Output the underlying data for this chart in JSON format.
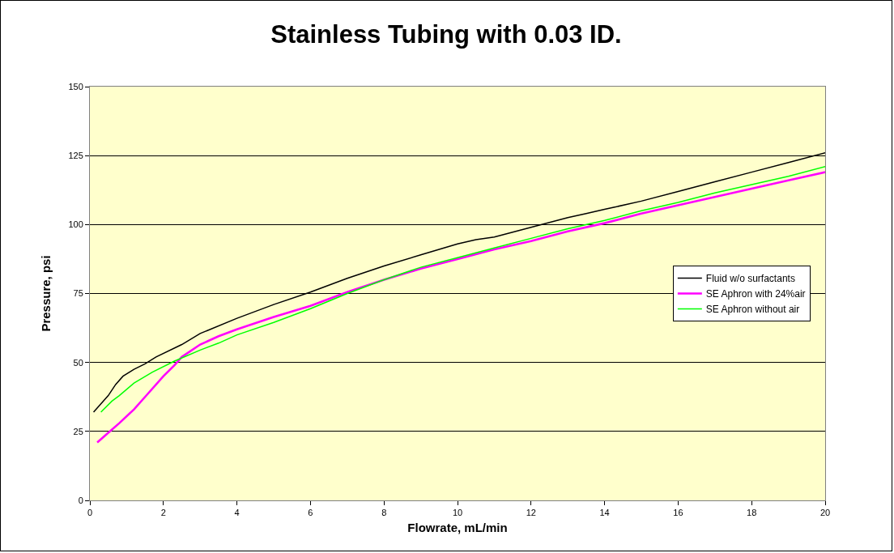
{
  "chart_data": {
    "type": "line",
    "title": "Stainless Tubing with 0.03 ID.",
    "xlabel": "Flowrate, mL/min",
    "ylabel": "Pressure, psi",
    "xlim": [
      0,
      20
    ],
    "xticks": [
      0,
      2,
      4,
      6,
      8,
      10,
      12,
      14,
      16,
      18,
      20
    ],
    "ylim": [
      0,
      150
    ],
    "yticks": [
      0,
      25,
      50,
      75,
      100,
      125,
      150
    ],
    "grid": "y",
    "legend": "right",
    "marker": "none",
    "line_style": "solid",
    "series": [
      {
        "name": "Fluid w/o surfactants",
        "color": "#000000",
        "x": [
          0.1,
          0.3,
          0.5,
          0.7,
          0.9,
          1.2,
          1.5,
          1.8,
          2.5,
          3,
          4,
          5,
          6,
          7,
          8,
          9,
          10,
          10.5,
          11,
          12,
          13,
          13.5,
          14,
          15,
          16,
          17,
          18,
          19,
          20
        ],
        "values": [
          32,
          35,
          38,
          42,
          45,
          47.5,
          49.5,
          52,
          56.5,
          60.5,
          66,
          71,
          75.5,
          80.5,
          85,
          89,
          93,
          94.5,
          95.5,
          99,
          102.5,
          104,
          105.5,
          108.5,
          112,
          115.5,
          119,
          122.5,
          126
        ]
      },
      {
        "name": "SE Aphron with 24%air",
        "color": "#ff00ff",
        "x": [
          0.2,
          0.5,
          0.8,
          1.2,
          1.5,
          2,
          2.3,
          2.5,
          3,
          3.5,
          4,
          5,
          6,
          7,
          8,
          9,
          10,
          11,
          12,
          13,
          14,
          15,
          16,
          17,
          18,
          19,
          20
        ],
        "values": [
          21,
          24.5,
          28,
          33,
          37.5,
          45,
          49,
          52,
          56.5,
          59.5,
          62,
          66.5,
          70.5,
          75.5,
          80,
          84,
          87.5,
          91,
          94,
          97.5,
          100.5,
          104,
          107,
          110,
          113,
          116,
          119
        ]
      },
      {
        "name": "SE Aphron without air",
        "color": "#00ff00",
        "x": [
          0.3,
          0.6,
          0.8,
          1.2,
          1.7,
          2.3,
          3,
          3.5,
          4,
          5,
          6,
          7,
          8,
          9,
          10,
          11,
          12,
          13,
          14,
          15,
          16,
          17,
          18,
          19,
          20
        ],
        "values": [
          32,
          36,
          38,
          42.5,
          46.5,
          50.5,
          54.5,
          57,
          60,
          64.5,
          69.5,
          75,
          80,
          84.5,
          88,
          91.5,
          95,
          98.5,
          101.5,
          105,
          108,
          111.5,
          114.5,
          117.5,
          121
        ]
      }
    ]
  }
}
